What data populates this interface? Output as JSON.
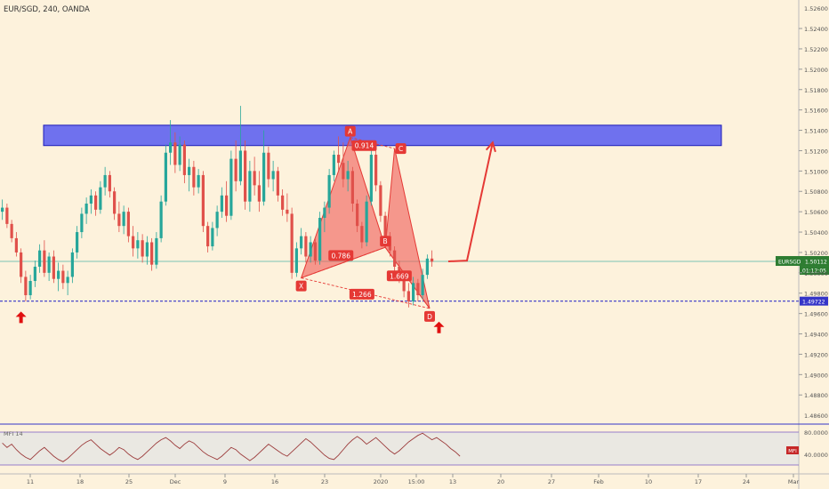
{
  "header": {
    "symbol_label": "EUR/SGD, 240, OANDA"
  },
  "colors": {
    "background": "#fdf2dc",
    "up": "#26a69a",
    "down": "#e0504a",
    "zone": "#5b5ef0",
    "pattern": "#f0605a",
    "support": "#3535c8",
    "last_price_bg": "#2e7d32",
    "mfi_line": "#9c3b3b"
  },
  "chart_data": {
    "type": "candlestick",
    "title": "EUR/SGD, 240, OANDA",
    "x_ticks": [
      "11",
      "18",
      "25",
      "Dec",
      "9",
      "16",
      "23",
      "2020",
      "15:00",
      "13",
      "20",
      "27",
      "Feb",
      "10",
      "17",
      "24",
      "Mar"
    ],
    "y_ticks": [
      "1.52400",
      "1.52200",
      "1.52000",
      "1.51800",
      "1.51600",
      "1.51400",
      "1.51200",
      "1.51000",
      "1.50800",
      "1.50600",
      "1.50400",
      "1.50200",
      "1.50000",
      "1.49800",
      "1.49600",
      "1.49400",
      "1.49200",
      "1.49000",
      "1.48800"
    ],
    "y_top_partial_label": "1.52600",
    "y_bottom_partial_label": "1.48600",
    "ylim": [
      1.4854,
      1.5268
    ],
    "supply_zone": {
      "low": 1.5125,
      "high": 1.5145
    },
    "support_level": 1.49722,
    "current_price": {
      "symbol": "EURSGD",
      "price": "1.50112",
      "countdown": "01:12:05",
      "support_label": "1.49722",
      "value": 1.50112
    },
    "pattern": {
      "name": "bat",
      "points": [
        {
          "label": "X",
          "x": 64,
          "y": 1.4995
        },
        {
          "label": "A",
          "x": 74.5,
          "y": 1.5133
        },
        {
          "label": "B",
          "x": 82,
          "y": 1.5025
        },
        {
          "label": "C",
          "x": 84,
          "y": 1.5122
        },
        {
          "label": "D",
          "x": 91.5,
          "y": 1.4965
        }
      ],
      "ratios": [
        {
          "text": "0.786",
          "x": 72.5,
          "y": 1.5017
        },
        {
          "text": "0.914",
          "x": 77.5,
          "y": 1.5125
        },
        {
          "text": "1.669",
          "x": 85,
          "y": 1.4997
        },
        {
          "text": "1.266",
          "x": 77,
          "y": 1.4979
        }
      ]
    },
    "projection": [
      {
        "x": 95.5,
        "y": 1.50112
      },
      {
        "x": 99.5,
        "y": 1.5012
      },
      {
        "x": 105,
        "y": 1.5128
      }
    ],
    "arrows": [
      {
        "x": 4,
        "y": 1.4962
      },
      {
        "x": 93.5,
        "y": 1.4952
      }
    ],
    "candles": [
      {
        "o": 1.506,
        "h": 1.5072,
        "l": 1.5052,
        "c": 1.5064
      },
      {
        "o": 1.5064,
        "h": 1.5068,
        "l": 1.5044,
        "c": 1.5048
      },
      {
        "o": 1.5048,
        "h": 1.5052,
        "l": 1.503,
        "c": 1.5034
      },
      {
        "o": 1.5034,
        "h": 1.504,
        "l": 1.5016,
        "c": 1.502
      },
      {
        "o": 1.502,
        "h": 1.5024,
        "l": 1.499,
        "c": 1.4996
      },
      {
        "o": 1.4996,
        "h": 1.5002,
        "l": 1.4972,
        "c": 1.4978
      },
      {
        "o": 1.4978,
        "h": 1.4998,
        "l": 1.4974,
        "c": 1.4992
      },
      {
        "o": 1.4992,
        "h": 1.5012,
        "l": 1.4986,
        "c": 1.5006
      },
      {
        "o": 1.5006,
        "h": 1.5028,
        "l": 1.5,
        "c": 1.5022
      },
      {
        "o": 1.5022,
        "h": 1.5032,
        "l": 1.4996,
        "c": 1.5
      },
      {
        "o": 1.5,
        "h": 1.502,
        "l": 1.4992,
        "c": 1.5016
      },
      {
        "o": 1.5016,
        "h": 1.5022,
        "l": 1.499,
        "c": 1.4994
      },
      {
        "o": 1.4994,
        "h": 1.501,
        "l": 1.4982,
        "c": 1.5002
      },
      {
        "o": 1.5002,
        "h": 1.5008,
        "l": 1.4984,
        "c": 1.499
      },
      {
        "o": 1.499,
        "h": 1.5002,
        "l": 1.4978,
        "c": 1.4996
      },
      {
        "o": 1.4996,
        "h": 1.5024,
        "l": 1.499,
        "c": 1.502
      },
      {
        "o": 1.502,
        "h": 1.5046,
        "l": 1.5014,
        "c": 1.504
      },
      {
        "o": 1.504,
        "h": 1.5064,
        "l": 1.5034,
        "c": 1.5058
      },
      {
        "o": 1.5058,
        "h": 1.5074,
        "l": 1.5048,
        "c": 1.5068
      },
      {
        "o": 1.5068,
        "h": 1.5082,
        "l": 1.5058,
        "c": 1.5076
      },
      {
        "o": 1.5076,
        "h": 1.508,
        "l": 1.5056,
        "c": 1.5062
      },
      {
        "o": 1.5062,
        "h": 1.509,
        "l": 1.5058,
        "c": 1.5084
      },
      {
        "o": 1.5084,
        "h": 1.5104,
        "l": 1.5076,
        "c": 1.5096
      },
      {
        "o": 1.5096,
        "h": 1.51,
        "l": 1.5074,
        "c": 1.508
      },
      {
        "o": 1.508,
        "h": 1.5084,
        "l": 1.5052,
        "c": 1.5058
      },
      {
        "o": 1.5058,
        "h": 1.507,
        "l": 1.504,
        "c": 1.5046
      },
      {
        "o": 1.5046,
        "h": 1.5066,
        "l": 1.5038,
        "c": 1.506
      },
      {
        "o": 1.506,
        "h": 1.5064,
        "l": 1.503,
        "c": 1.5036
      },
      {
        "o": 1.5036,
        "h": 1.5046,
        "l": 1.5016,
        "c": 1.5024
      },
      {
        "o": 1.5024,
        "h": 1.504,
        "l": 1.5014,
        "c": 1.5032
      },
      {
        "o": 1.5032,
        "h": 1.5038,
        "l": 1.501,
        "c": 1.5016
      },
      {
        "o": 1.5016,
        "h": 1.5036,
        "l": 1.5008,
        "c": 1.503
      },
      {
        "o": 1.503,
        "h": 1.5034,
        "l": 1.5002,
        "c": 1.5008
      },
      {
        "o": 1.5008,
        "h": 1.504,
        "l": 1.5004,
        "c": 1.5034
      },
      {
        "o": 1.5034,
        "h": 1.5076,
        "l": 1.503,
        "c": 1.507
      },
      {
        "o": 1.507,
        "h": 1.5126,
        "l": 1.5066,
        "c": 1.5118
      },
      {
        "o": 1.5118,
        "h": 1.515,
        "l": 1.5106,
        "c": 1.5128
      },
      {
        "o": 1.5128,
        "h": 1.5138,
        "l": 1.5098,
        "c": 1.5106
      },
      {
        "o": 1.5106,
        "h": 1.5134,
        "l": 1.51,
        "c": 1.5126
      },
      {
        "o": 1.5126,
        "h": 1.513,
        "l": 1.5088,
        "c": 1.5096
      },
      {
        "o": 1.5096,
        "h": 1.5112,
        "l": 1.508,
        "c": 1.5104
      },
      {
        "o": 1.5104,
        "h": 1.511,
        "l": 1.5076,
        "c": 1.5084
      },
      {
        "o": 1.5084,
        "h": 1.5102,
        "l": 1.5078,
        "c": 1.5096
      },
      {
        "o": 1.5096,
        "h": 1.51,
        "l": 1.504,
        "c": 1.5046
      },
      {
        "o": 1.5046,
        "h": 1.505,
        "l": 1.502,
        "c": 1.5026
      },
      {
        "o": 1.5026,
        "h": 1.505,
        "l": 1.5022,
        "c": 1.5044
      },
      {
        "o": 1.5044,
        "h": 1.5066,
        "l": 1.5036,
        "c": 1.506
      },
      {
        "o": 1.506,
        "h": 1.5084,
        "l": 1.5054,
        "c": 1.5076
      },
      {
        "o": 1.5076,
        "h": 1.509,
        "l": 1.505,
        "c": 1.5056
      },
      {
        "o": 1.5056,
        "h": 1.512,
        "l": 1.5052,
        "c": 1.5112
      },
      {
        "o": 1.5112,
        "h": 1.513,
        "l": 1.508,
        "c": 1.509
      },
      {
        "o": 1.509,
        "h": 1.5164,
        "l": 1.5086,
        "c": 1.512
      },
      {
        "o": 1.512,
        "h": 1.513,
        "l": 1.5062,
        "c": 1.507
      },
      {
        "o": 1.507,
        "h": 1.511,
        "l": 1.506,
        "c": 1.51
      },
      {
        "o": 1.51,
        "h": 1.5114,
        "l": 1.5076,
        "c": 1.5086
      },
      {
        "o": 1.5086,
        "h": 1.51,
        "l": 1.506,
        "c": 1.507
      },
      {
        "o": 1.507,
        "h": 1.514,
        "l": 1.5066,
        "c": 1.5118
      },
      {
        "o": 1.5118,
        "h": 1.5124,
        "l": 1.5084,
        "c": 1.5092
      },
      {
        "o": 1.5092,
        "h": 1.511,
        "l": 1.508,
        "c": 1.51
      },
      {
        "o": 1.51,
        "h": 1.5104,
        "l": 1.507,
        "c": 1.5076
      },
      {
        "o": 1.5076,
        "h": 1.5082,
        "l": 1.5056,
        "c": 1.5062
      },
      {
        "o": 1.5062,
        "h": 1.5078,
        "l": 1.505,
        "c": 1.5058
      },
      {
        "o": 1.5058,
        "h": 1.5064,
        "l": 1.4994,
        "c": 1.5
      },
      {
        "o": 1.5,
        "h": 1.503,
        "l": 1.4996,
        "c": 1.5024
      },
      {
        "o": 1.5024,
        "h": 1.5044,
        "l": 1.5018,
        "c": 1.5036
      },
      {
        "o": 1.5036,
        "h": 1.504,
        "l": 1.501,
        "c": 1.5016
      },
      {
        "o": 1.5016,
        "h": 1.5036,
        "l": 1.501,
        "c": 1.503
      },
      {
        "o": 1.503,
        "h": 1.5034,
        "l": 1.5008,
        "c": 1.5012
      },
      {
        "o": 1.5012,
        "h": 1.506,
        "l": 1.5008,
        "c": 1.5054
      },
      {
        "o": 1.5054,
        "h": 1.507,
        "l": 1.504,
        "c": 1.5064
      },
      {
        "o": 1.5064,
        "h": 1.5102,
        "l": 1.5058,
        "c": 1.5096
      },
      {
        "o": 1.5096,
        "h": 1.512,
        "l": 1.509,
        "c": 1.5116
      },
      {
        "o": 1.5116,
        "h": 1.5134,
        "l": 1.51,
        "c": 1.5108
      },
      {
        "o": 1.5108,
        "h": 1.5128,
        "l": 1.5084,
        "c": 1.5092
      },
      {
        "o": 1.5092,
        "h": 1.511,
        "l": 1.508,
        "c": 1.51
      },
      {
        "o": 1.51,
        "h": 1.5104,
        "l": 1.506,
        "c": 1.5068
      },
      {
        "o": 1.5068,
        "h": 1.5072,
        "l": 1.504,
        "c": 1.5046
      },
      {
        "o": 1.5046,
        "h": 1.505,
        "l": 1.5024,
        "c": 1.503
      },
      {
        "o": 1.503,
        "h": 1.5076,
        "l": 1.5026,
        "c": 1.507
      },
      {
        "o": 1.507,
        "h": 1.5122,
        "l": 1.5066,
        "c": 1.5116
      },
      {
        "o": 1.5116,
        "h": 1.512,
        "l": 1.508,
        "c": 1.5086
      },
      {
        "o": 1.5086,
        "h": 1.509,
        "l": 1.505,
        "c": 1.5056
      },
      {
        "o": 1.5056,
        "h": 1.506,
        "l": 1.503,
        "c": 1.5036
      },
      {
        "o": 1.5036,
        "h": 1.504,
        "l": 1.5016,
        "c": 1.5022
      },
      {
        "o": 1.5022,
        "h": 1.5026,
        "l": 1.5,
        "c": 1.5006
      },
      {
        "o": 1.5006,
        "h": 1.5012,
        "l": 1.499,
        "c": 1.4996
      },
      {
        "o": 1.4996,
        "h": 1.5,
        "l": 1.4976,
        "c": 1.4982
      },
      {
        "o": 1.4982,
        "h": 1.499,
        "l": 1.4966,
        "c": 1.4972
      },
      {
        "o": 1.4972,
        "h": 1.4996,
        "l": 1.4968,
        "c": 1.499
      },
      {
        "o": 1.499,
        "h": 1.4994,
        "l": 1.4972,
        "c": 1.4978
      },
      {
        "o": 1.4978,
        "h": 1.5004,
        "l": 1.4974,
        "c": 1.4998
      },
      {
        "o": 1.4998,
        "h": 1.5018,
        "l": 1.4994,
        "c": 1.5014
      },
      {
        "o": 1.5014,
        "h": 1.5022,
        "l": 1.5006,
        "c": 1.5011
      }
    ]
  },
  "mfi": {
    "label": "MFI 14",
    "badge": "MFI",
    "upper_label": "80.0000",
    "lower_label": "40.0000",
    "series": [
      60,
      52,
      58,
      48,
      40,
      34,
      30,
      38,
      46,
      52,
      44,
      36,
      30,
      26,
      32,
      40,
      48,
      56,
      62,
      66,
      58,
      50,
      44,
      38,
      44,
      52,
      48,
      40,
      34,
      30,
      36,
      44,
      52,
      60,
      66,
      70,
      64,
      56,
      50,
      58,
      64,
      60,
      52,
      44,
      38,
      34,
      30,
      36,
      44,
      52,
      48,
      40,
      34,
      28,
      34,
      42,
      50,
      58,
      52,
      46,
      40,
      36,
      44,
      52,
      60,
      68,
      62,
      54,
      46,
      38,
      32,
      30,
      38,
      48,
      58,
      66,
      72,
      66,
      58,
      64,
      70,
      62,
      54,
      46,
      40,
      46,
      54,
      62,
      68,
      74,
      78,
      72,
      66,
      70,
      64,
      58,
      50,
      44,
      36
    ]
  }
}
